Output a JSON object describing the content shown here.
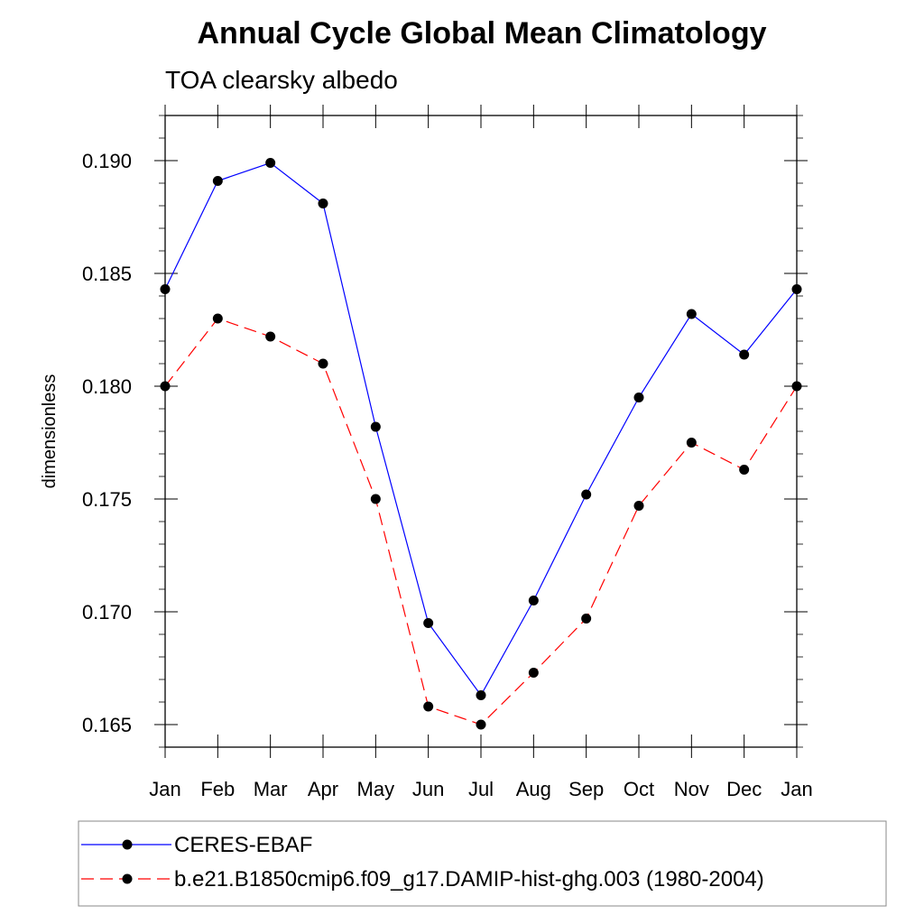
{
  "chart_data": {
    "type": "line",
    "title": "Annual Cycle Global Mean Climatology",
    "subtitle": "TOA clearsky albedo",
    "xlabel": "",
    "ylabel": "dimensionless",
    "categories": [
      "Jan",
      "Feb",
      "Mar",
      "Apr",
      "May",
      "Jun",
      "Jul",
      "Aug",
      "Sep",
      "Oct",
      "Nov",
      "Dec",
      "Jan"
    ],
    "ylim": [
      0.164,
      0.192
    ],
    "yticks": [
      "0.165",
      "0.170",
      "0.175",
      "0.180",
      "0.185",
      "0.190"
    ],
    "series": [
      {
        "name": "CERES-EBAF",
        "color": "#0000ff",
        "style": "solid",
        "values": [
          0.1843,
          0.1891,
          0.1899,
          0.1881,
          0.1782,
          0.1695,
          0.1663,
          0.1705,
          0.1752,
          0.1795,
          0.1832,
          0.1814,
          0.1843
        ]
      },
      {
        "name": "b.e21.B1850cmip6.f09_g17.DAMIP-hist-ghg.003 (1980-2004)",
        "color": "#ff0000",
        "style": "dashed",
        "values": [
          0.18,
          0.183,
          0.1822,
          0.181,
          0.175,
          0.1658,
          0.165,
          0.1673,
          0.1697,
          0.1747,
          0.1775,
          0.1763,
          0.18
        ]
      }
    ]
  }
}
